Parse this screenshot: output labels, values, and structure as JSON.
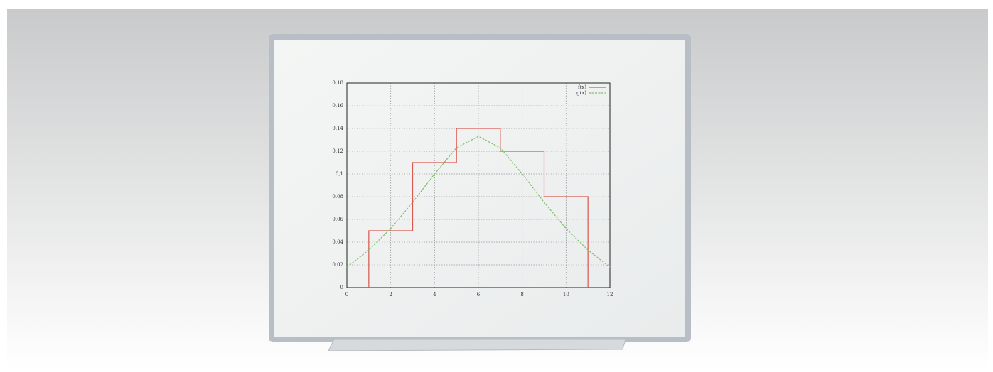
{
  "chart_data": {
    "type": "line",
    "series": [
      {
        "name": "f(x)",
        "color": "#d9574f",
        "x": [
          1,
          1,
          3,
          3,
          5,
          5,
          7,
          7,
          9,
          9,
          11,
          11
        ],
        "values": [
          0,
          0.05,
          0.05,
          0.11,
          0.11,
          0.14,
          0.14,
          0.12,
          0.12,
          0.08,
          0.08,
          0
        ]
      },
      {
        "name": "g(x)",
        "color": "#7fbf6a",
        "x": [
          0,
          1,
          2,
          3,
          4,
          5,
          6,
          7,
          8,
          9,
          10,
          11,
          12
        ],
        "values": [
          0.018,
          0.033,
          0.052,
          0.075,
          0.1,
          0.123,
          0.133,
          0.123,
          0.1,
          0.075,
          0.052,
          0.033,
          0.018
        ]
      }
    ],
    "xlim": [
      0,
      12
    ],
    "xticks": [
      0,
      2,
      4,
      6,
      8,
      10,
      12
    ],
    "ylim": [
      0,
      0.18
    ],
    "yticks": [
      0,
      {
        "value": 0.02,
        "label": "0,02"
      },
      {
        "value": 0.04,
        "label": "0,04"
      },
      {
        "value": 0.06,
        "label": "0,06"
      },
      {
        "value": 0.08,
        "label": "0,08"
      },
      {
        "value": 0.1,
        "label": "0,1"
      },
      {
        "value": 0.12,
        "label": "0,12"
      },
      {
        "value": 0.14,
        "label": "0,14"
      },
      {
        "value": 0.16,
        "label": "0,16"
      },
      {
        "value": 0.18,
        "label": "0,18"
      }
    ],
    "grid": true,
    "legend": "upper right"
  }
}
